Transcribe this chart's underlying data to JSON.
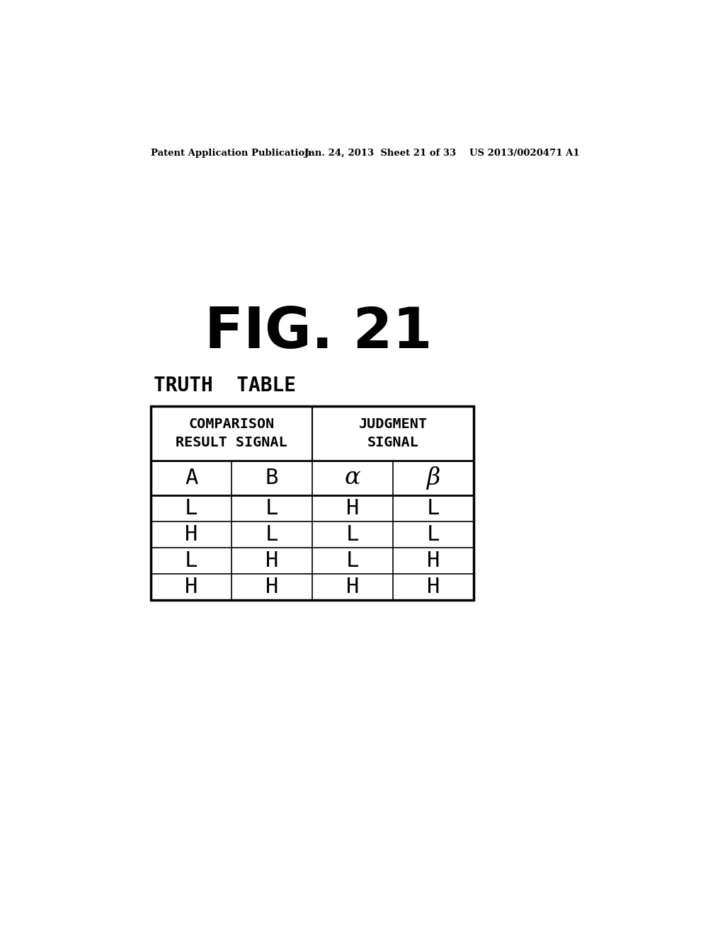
{
  "background_color": "#ffffff",
  "header_left": "Patent Application Publication",
  "header_mid": "Jan. 24, 2013  Sheet 21 of 33",
  "header_right": "US 2013/0020471 A1",
  "fig_title": "FIG. 21",
  "subtitle": "TRUTH  TABLE",
  "table": {
    "sub_headers": [
      "A",
      "B",
      "α",
      "β"
    ],
    "rows": [
      [
        "L",
        "L",
        "H",
        "L"
      ],
      [
        "H",
        "L",
        "L",
        "L"
      ],
      [
        "L",
        "H",
        "L",
        "H"
      ],
      [
        "H",
        "H",
        "H",
        "H"
      ]
    ]
  }
}
